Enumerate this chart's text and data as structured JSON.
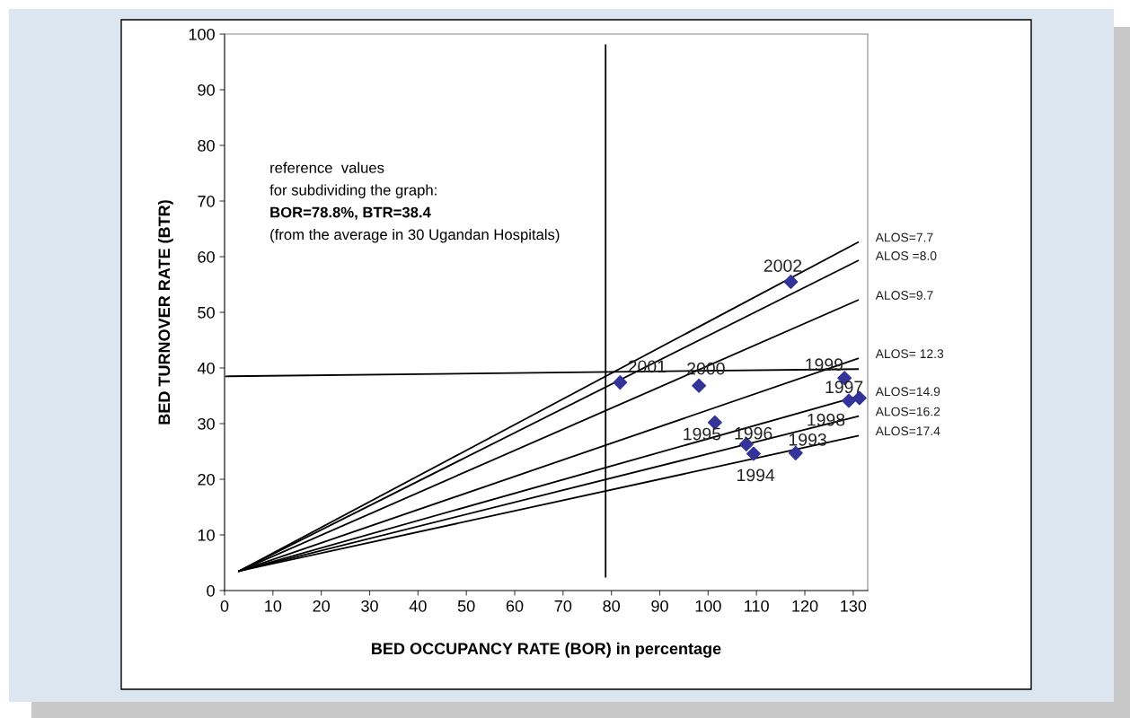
{
  "chart_data": {
    "type": "scatter",
    "xlabel": "BED OCCUPANCY RATE (BOR) in percentage",
    "ylabel": "BED TURNOVER RATE (BTR)",
    "xlim": [
      0,
      133
    ],
    "ylim": [
      0,
      100
    ],
    "xticks": [
      0,
      10,
      20,
      30,
      40,
      50,
      60,
      70,
      80,
      90,
      100,
      110,
      120,
      130
    ],
    "yticks": [
      0,
      10,
      20,
      30,
      40,
      50,
      60,
      70,
      80,
      90,
      100
    ],
    "grid": false,
    "series": [
      {
        "marker": "diamond",
        "color": "#333399",
        "x": [
          118.1,
          109.4,
          101.4,
          107.9,
          131.3,
          129.1,
          128.2,
          98.1,
          81.8,
          117.1
        ],
        "values": [
          24.7,
          24.6,
          30.2,
          26.3,
          34.6,
          34.1,
          38.2,
          36.8,
          37.4,
          55.5
        ]
      },
      {
        "type": "line",
        "name": "ALOS=7.7",
        "color": "#000000",
        "x": [
          3,
          131
        ],
        "values": [
          3.5,
          62.6
        ]
      },
      {
        "type": "line",
        "name": "ALOS =8.0",
        "color": "#000000",
        "x": [
          3,
          131
        ],
        "values": [
          3.5,
          59.3
        ]
      },
      {
        "type": "line",
        "name": "ALOS=9.7",
        "color": "#000000",
        "x": [
          3,
          131
        ],
        "values": [
          3.5,
          52.2
        ]
      },
      {
        "type": "line",
        "name": "ALOS= 12.3",
        "color": "#000000",
        "x": [
          3,
          131
        ],
        "values": [
          3.5,
          41.7
        ]
      },
      {
        "type": "line",
        "name": "ALOS=14.9",
        "color": "#000000",
        "x": [
          3,
          131
        ],
        "values": [
          3.5,
          34.9
        ]
      },
      {
        "type": "line",
        "name": "ALOS=16.2",
        "color": "#000000",
        "x": [
          3,
          131
        ],
        "values": [
          3.5,
          31.3
        ]
      },
      {
        "type": "line",
        "name": "ALOS=17.4",
        "color": "#000000",
        "x": [
          3,
          131
        ],
        "values": [
          3.5,
          27.8
        ]
      },
      {
        "type": "line",
        "color": "#000000",
        "x": [
          0.3,
          131
        ],
        "values": [
          38.5,
          39.8
        ]
      },
      {
        "type": "line",
        "color": "#000000",
        "x": [
          78.8,
          78.8
        ],
        "values": [
          2.5,
          98
        ]
      }
    ],
    "annotations": [
      {
        "text": "1993",
        "x": 118.1,
        "y": 24.7
      },
      {
        "text": "1994",
        "x": 109.4,
        "y": 24.6
      },
      {
        "text": "1995",
        "x": 101.4,
        "y": 30.2
      },
      {
        "text": "1996",
        "x": 107.9,
        "y": 26.3
      },
      {
        "text": "1997",
        "x": 131.3,
        "y": 34.6
      },
      {
        "text": "1998",
        "x": 129.1,
        "y": 34.1
      },
      {
        "text": "1999",
        "x": 128.2,
        "y": 38.2
      },
      {
        "text": "2000",
        "x": 98.1,
        "y": 36.8
      },
      {
        "text": "2001",
        "x": 81.8,
        "y": 37.4
      },
      {
        "text": "2002",
        "x": 117.1,
        "y": 55.5
      },
      "reference  values",
      "for subdividing the graph:",
      "BOR=78.8%, BTR=38.4",
      "(from the average in 30 Ugandan Hospitals)"
    ]
  }
}
